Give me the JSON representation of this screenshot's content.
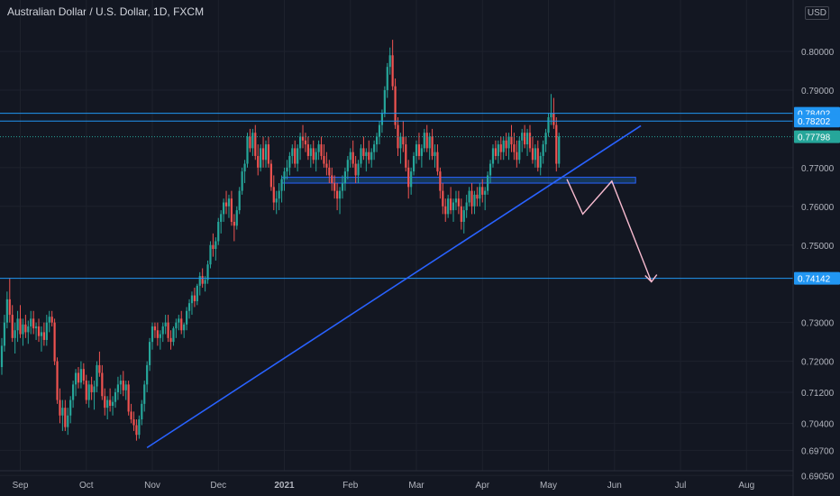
{
  "header": {
    "title": "Australian Dollar / U.S. Dollar, 1D, FXCM",
    "currency": "USD"
  },
  "chart_data": {
    "type": "candlestick",
    "title": "Australian Dollar / U.S. Dollar, 1D, FXCM",
    "price_ticks": [
      "0.80000",
      "0.79000",
      "0.77000",
      "0.76000",
      "0.75000",
      "0.73000",
      "0.72000",
      "0.71200",
      "0.70400",
      "0.69700",
      "0.69050"
    ],
    "time_ticks": [
      {
        "label": "Sep",
        "t": 7,
        "bold": false
      },
      {
        "label": "Oct",
        "t": 32,
        "bold": false
      },
      {
        "label": "Nov",
        "t": 57,
        "bold": false
      },
      {
        "label": "Dec",
        "t": 82,
        "bold": false
      },
      {
        "label": "2021",
        "t": 107,
        "bold": true
      },
      {
        "label": "Feb",
        "t": 132,
        "bold": false
      },
      {
        "label": "Mar",
        "t": 157,
        "bold": false
      },
      {
        "label": "Apr",
        "t": 182,
        "bold": false
      },
      {
        "label": "May",
        "t": 207,
        "bold": false
      },
      {
        "label": "Jun",
        "t": 232,
        "bold": false
      },
      {
        "label": "Jul",
        "t": 257,
        "bold": false
      },
      {
        "label": "Aug",
        "t": 282,
        "bold": false
      }
    ],
    "x_range": [
      0,
      320
    ],
    "price_labels": [
      {
        "value": "0.78402",
        "price": 0.78402,
        "color": "#2196f3",
        "text_color": "#ffffff"
      },
      {
        "value": "0.78202",
        "price": 0.78202,
        "color": "#2196f3",
        "text_color": "#ffffff"
      },
      {
        "value": "0.77798",
        "price": 0.77798,
        "color": "#26a69a",
        "text_color": "#ffffff"
      },
      {
        "value": "0.74142",
        "price": 0.74142,
        "color": "#2196f3",
        "text_color": "#ffffff"
      }
    ],
    "horizontal_lines": [
      0.78402,
      0.78202,
      0.74142
    ],
    "last_price": 0.77798,
    "support_zone": {
      "t1": 106,
      "t2": 240,
      "p_top": 0.7675,
      "p_bottom": 0.766
    },
    "trendline": {
      "t1": 55,
      "p1": 0.6977,
      "t2": 242,
      "p2": 0.7808
    },
    "projection": [
      [
        214,
        0.767
      ],
      [
        220,
        0.758
      ],
      [
        231,
        0.7665
      ],
      [
        246,
        0.7405
      ]
    ],
    "candles_ohlc": [
      [
        0.7185,
        0.726,
        0.7165,
        0.724
      ],
      [
        0.724,
        0.732,
        0.7225,
        0.73
      ],
      [
        0.73,
        0.738,
        0.7285,
        0.736
      ],
      [
        0.736,
        0.7415,
        0.73,
        0.732
      ],
      [
        0.732,
        0.7345,
        0.725,
        0.726
      ],
      [
        0.726,
        0.73,
        0.722,
        0.728
      ],
      [
        0.728,
        0.733,
        0.725,
        0.731
      ],
      [
        0.731,
        0.7345,
        0.726,
        0.727
      ],
      [
        0.727,
        0.731,
        0.724,
        0.7295
      ],
      [
        0.7295,
        0.732,
        0.726,
        0.7275
      ],
      [
        0.7275,
        0.7305,
        0.7245,
        0.729
      ],
      [
        0.729,
        0.733,
        0.727,
        0.731
      ],
      [
        0.731,
        0.733,
        0.727,
        0.7285
      ],
      [
        0.7285,
        0.73,
        0.7255,
        0.729
      ],
      [
        0.729,
        0.731,
        0.725,
        0.7265
      ],
      [
        0.7265,
        0.729,
        0.7225,
        0.7275
      ],
      [
        0.7275,
        0.73,
        0.724,
        0.7255
      ],
      [
        0.7255,
        0.732,
        0.724,
        0.73
      ],
      [
        0.73,
        0.733,
        0.7275,
        0.7315
      ],
      [
        0.7315,
        0.733,
        0.729,
        0.73
      ],
      [
        0.73,
        0.731,
        0.719,
        0.72
      ],
      [
        0.72,
        0.721,
        0.709,
        0.71
      ],
      [
        0.71,
        0.713,
        0.704,
        0.706
      ],
      [
        0.706,
        0.71,
        0.702,
        0.708
      ],
      [
        0.708,
        0.71,
        0.702,
        0.703
      ],
      [
        0.703,
        0.708,
        0.701,
        0.706
      ],
      [
        0.706,
        0.711,
        0.704,
        0.71
      ],
      [
        0.71,
        0.715,
        0.708,
        0.714
      ],
      [
        0.714,
        0.718,
        0.711,
        0.717
      ],
      [
        0.717,
        0.7185,
        0.713,
        0.7145
      ],
      [
        0.7145,
        0.72,
        0.713,
        0.718
      ],
      [
        0.718,
        0.7195,
        0.714,
        0.715
      ],
      [
        0.715,
        0.7165,
        0.709,
        0.71
      ],
      [
        0.71,
        0.715,
        0.708,
        0.714
      ],
      [
        0.714,
        0.716,
        0.71,
        0.712
      ],
      [
        0.712,
        0.715,
        0.7075,
        0.7135
      ],
      [
        0.7135,
        0.72,
        0.712,
        0.719
      ],
      [
        0.719,
        0.7225,
        0.716,
        0.717
      ],
      [
        0.717,
        0.719,
        0.71,
        0.711
      ],
      [
        0.711,
        0.713,
        0.706,
        0.708
      ],
      [
        0.708,
        0.711,
        0.705,
        0.71
      ],
      [
        0.71,
        0.713,
        0.707,
        0.7085
      ],
      [
        0.7085,
        0.711,
        0.706,
        0.7095
      ],
      [
        0.7095,
        0.713,
        0.708,
        0.712
      ],
      [
        0.712,
        0.716,
        0.71,
        0.714
      ],
      [
        0.714,
        0.7165,
        0.7115,
        0.715
      ],
      [
        0.715,
        0.7175,
        0.711,
        0.7125
      ],
      [
        0.7125,
        0.715,
        0.71,
        0.714
      ],
      [
        0.714,
        0.715,
        0.706,
        0.707
      ],
      [
        0.707,
        0.709,
        0.704,
        0.705
      ],
      [
        0.705,
        0.707,
        0.702,
        0.7035
      ],
      [
        0.7035,
        0.705,
        0.6995,
        0.701
      ],
      [
        0.701,
        0.706,
        0.7,
        0.705
      ],
      [
        0.705,
        0.71,
        0.7035,
        0.709
      ],
      [
        0.709,
        0.715,
        0.707,
        0.714
      ],
      [
        0.714,
        0.72,
        0.712,
        0.719
      ],
      [
        0.719,
        0.726,
        0.7175,
        0.725
      ],
      [
        0.725,
        0.73,
        0.723,
        0.729
      ],
      [
        0.729,
        0.73,
        0.726,
        0.728
      ],
      [
        0.728,
        0.73,
        0.724,
        0.726
      ],
      [
        0.726,
        0.728,
        0.723,
        0.727
      ],
      [
        0.727,
        0.73,
        0.725,
        0.729
      ],
      [
        0.729,
        0.732,
        0.727,
        0.73
      ],
      [
        0.73,
        0.732,
        0.725,
        0.726
      ],
      [
        0.726,
        0.728,
        0.723,
        0.725
      ],
      [
        0.725,
        0.729,
        0.724,
        0.7285
      ],
      [
        0.7285,
        0.731,
        0.726,
        0.73
      ],
      [
        0.73,
        0.732,
        0.728,
        0.731
      ],
      [
        0.731,
        0.733,
        0.727,
        0.728
      ],
      [
        0.728,
        0.73,
        0.726,
        0.7295
      ],
      [
        0.7295,
        0.734,
        0.728,
        0.733
      ],
      [
        0.733,
        0.736,
        0.731,
        0.735
      ],
      [
        0.735,
        0.738,
        0.732,
        0.737
      ],
      [
        0.737,
        0.739,
        0.734,
        0.7355
      ],
      [
        0.7355,
        0.74,
        0.7345,
        0.7395
      ],
      [
        0.7395,
        0.743,
        0.737,
        0.742
      ],
      [
        0.742,
        0.744,
        0.739,
        0.74
      ],
      [
        0.74,
        0.742,
        0.738,
        0.741
      ],
      [
        0.741,
        0.746,
        0.74,
        0.745
      ],
      [
        0.745,
        0.751,
        0.744,
        0.75
      ],
      [
        0.75,
        0.753,
        0.747,
        0.749
      ],
      [
        0.749,
        0.752,
        0.746,
        0.751
      ],
      [
        0.751,
        0.757,
        0.75,
        0.756
      ],
      [
        0.756,
        0.759,
        0.753,
        0.758
      ],
      [
        0.758,
        0.762,
        0.756,
        0.761
      ],
      [
        0.761,
        0.764,
        0.758,
        0.76
      ],
      [
        0.76,
        0.763,
        0.757,
        0.762
      ],
      [
        0.762,
        0.764,
        0.755,
        0.756
      ],
      [
        0.756,
        0.758,
        0.751,
        0.755
      ],
      [
        0.755,
        0.76,
        0.754,
        0.759
      ],
      [
        0.759,
        0.765,
        0.758,
        0.764
      ],
      [
        0.764,
        0.77,
        0.763,
        0.769
      ],
      [
        0.769,
        0.772,
        0.766,
        0.771
      ],
      [
        0.771,
        0.779,
        0.77,
        0.778
      ],
      [
        0.778,
        0.78,
        0.774,
        0.775
      ],
      [
        0.775,
        0.78,
        0.773,
        0.779
      ],
      [
        0.779,
        0.781,
        0.772,
        0.773
      ],
      [
        0.773,
        0.776,
        0.768,
        0.77
      ],
      [
        0.77,
        0.776,
        0.769,
        0.775
      ],
      [
        0.775,
        0.778,
        0.77,
        0.772
      ],
      [
        0.772,
        0.777,
        0.77,
        0.776
      ],
      [
        0.776,
        0.778,
        0.77,
        0.771
      ],
      [
        0.771,
        0.772,
        0.764,
        0.765
      ],
      [
        0.765,
        0.768,
        0.759,
        0.761
      ],
      [
        0.761,
        0.764,
        0.758,
        0.762
      ],
      [
        0.762,
        0.766,
        0.759,
        0.764
      ],
      [
        0.764,
        0.768,
        0.761,
        0.767
      ],
      [
        0.767,
        0.77,
        0.764,
        0.769
      ],
      [
        0.769,
        0.772,
        0.767,
        0.77
      ],
      [
        0.77,
        0.774,
        0.768,
        0.773
      ],
      [
        0.773,
        0.776,
        0.771,
        0.775
      ],
      [
        0.775,
        0.777,
        0.77,
        0.771
      ],
      [
        0.771,
        0.776,
        0.769,
        0.775
      ],
      [
        0.775,
        0.779,
        0.772,
        0.778
      ],
      [
        0.778,
        0.781,
        0.775,
        0.777
      ],
      [
        0.777,
        0.779,
        0.774,
        0.776
      ],
      [
        0.776,
        0.778,
        0.772,
        0.773
      ],
      [
        0.773,
        0.776,
        0.77,
        0.775
      ],
      [
        0.775,
        0.777,
        0.771,
        0.772
      ],
      [
        0.772,
        0.775,
        0.769,
        0.774
      ],
      [
        0.774,
        0.777,
        0.772,
        0.776
      ],
      [
        0.776,
        0.778,
        0.772,
        0.773
      ],
      [
        0.773,
        0.776,
        0.77,
        0.771
      ],
      [
        0.771,
        0.774,
        0.768,
        0.77
      ],
      [
        0.77,
        0.772,
        0.766,
        0.768
      ],
      [
        0.768,
        0.77,
        0.764,
        0.766
      ],
      [
        0.766,
        0.768,
        0.762,
        0.764
      ],
      [
        0.764,
        0.766,
        0.759,
        0.762
      ],
      [
        0.762,
        0.765,
        0.758,
        0.764
      ],
      [
        0.764,
        0.768,
        0.762,
        0.766
      ],
      [
        0.766,
        0.77,
        0.764,
        0.769
      ],
      [
        0.769,
        0.773,
        0.767,
        0.772
      ],
      [
        0.772,
        0.775,
        0.77,
        0.774
      ],
      [
        0.774,
        0.777,
        0.77,
        0.771
      ],
      [
        0.771,
        0.773,
        0.766,
        0.768
      ],
      [
        0.768,
        0.772,
        0.766,
        0.771
      ],
      [
        0.771,
        0.776,
        0.77,
        0.775
      ],
      [
        0.775,
        0.778,
        0.772,
        0.773
      ],
      [
        0.773,
        0.775,
        0.769,
        0.774
      ],
      [
        0.774,
        0.777,
        0.771,
        0.772
      ],
      [
        0.772,
        0.775,
        0.77,
        0.774
      ],
      [
        0.774,
        0.777,
        0.772,
        0.776
      ],
      [
        0.776,
        0.779,
        0.774,
        0.778
      ],
      [
        0.778,
        0.782,
        0.776,
        0.781
      ],
      [
        0.781,
        0.785,
        0.779,
        0.784
      ],
      [
        0.784,
        0.791,
        0.783,
        0.79
      ],
      [
        0.79,
        0.797,
        0.788,
        0.796
      ],
      [
        0.796,
        0.801,
        0.794,
        0.799
      ],
      [
        0.799,
        0.803,
        0.79,
        0.791
      ],
      [
        0.791,
        0.793,
        0.78,
        0.781
      ],
      [
        0.781,
        0.783,
        0.773,
        0.775
      ],
      [
        0.775,
        0.779,
        0.771,
        0.778
      ],
      [
        0.778,
        0.782,
        0.774,
        0.776
      ],
      [
        0.776,
        0.778,
        0.769,
        0.77
      ],
      [
        0.77,
        0.772,
        0.762,
        0.765
      ],
      [
        0.765,
        0.77,
        0.763,
        0.769
      ],
      [
        0.769,
        0.774,
        0.768,
        0.773
      ],
      [
        0.773,
        0.777,
        0.771,
        0.776
      ],
      [
        0.776,
        0.779,
        0.772,
        0.773
      ],
      [
        0.773,
        0.776,
        0.77,
        0.775
      ],
      [
        0.775,
        0.78,
        0.774,
        0.779
      ],
      [
        0.779,
        0.781,
        0.774,
        0.775
      ],
      [
        0.775,
        0.779,
        0.772,
        0.778
      ],
      [
        0.778,
        0.78,
        0.772,
        0.773
      ],
      [
        0.773,
        0.776,
        0.77,
        0.774
      ],
      [
        0.774,
        0.776,
        0.768,
        0.769
      ],
      [
        0.769,
        0.77,
        0.762,
        0.764
      ],
      [
        0.764,
        0.766,
        0.758,
        0.76
      ],
      [
        0.76,
        0.762,
        0.756,
        0.758
      ],
      [
        0.758,
        0.763,
        0.757,
        0.762
      ],
      [
        0.762,
        0.765,
        0.758,
        0.759
      ],
      [
        0.759,
        0.762,
        0.756,
        0.761
      ],
      [
        0.761,
        0.764,
        0.759,
        0.762
      ],
      [
        0.762,
        0.764,
        0.758,
        0.76
      ],
      [
        0.76,
        0.762,
        0.754,
        0.756
      ],
      [
        0.756,
        0.76,
        0.753,
        0.759
      ],
      [
        0.759,
        0.763,
        0.757,
        0.761
      ],
      [
        0.761,
        0.765,
        0.76,
        0.764
      ],
      [
        0.764,
        0.766,
        0.758,
        0.76
      ],
      [
        0.76,
        0.764,
        0.758,
        0.763
      ],
      [
        0.763,
        0.765,
        0.76,
        0.762
      ],
      [
        0.762,
        0.766,
        0.76,
        0.765
      ],
      [
        0.765,
        0.767,
        0.761,
        0.763
      ],
      [
        0.763,
        0.765,
        0.759,
        0.764
      ],
      [
        0.764,
        0.769,
        0.763,
        0.768
      ],
      [
        0.768,
        0.772,
        0.766,
        0.771
      ],
      [
        0.771,
        0.776,
        0.77,
        0.775
      ],
      [
        0.775,
        0.777,
        0.772,
        0.773
      ],
      [
        0.773,
        0.777,
        0.771,
        0.776
      ],
      [
        0.776,
        0.778,
        0.772,
        0.774
      ],
      [
        0.774,
        0.778,
        0.772,
        0.777
      ],
      [
        0.777,
        0.779,
        0.773,
        0.775
      ],
      [
        0.775,
        0.779,
        0.772,
        0.778
      ],
      [
        0.778,
        0.781,
        0.774,
        0.776
      ],
      [
        0.776,
        0.779,
        0.772,
        0.774
      ],
      [
        0.774,
        0.777,
        0.77,
        0.772
      ],
      [
        0.772,
        0.778,
        0.771,
        0.777
      ],
      [
        0.777,
        0.78,
        0.774,
        0.779
      ],
      [
        0.779,
        0.781,
        0.775,
        0.776
      ],
      [
        0.776,
        0.78,
        0.773,
        0.779
      ],
      [
        0.779,
        0.781,
        0.774,
        0.775
      ],
      [
        0.775,
        0.778,
        0.771,
        0.772
      ],
      [
        0.772,
        0.776,
        0.77,
        0.775
      ],
      [
        0.775,
        0.777,
        0.769,
        0.77
      ],
      [
        0.77,
        0.774,
        0.768,
        0.773
      ],
      [
        0.773,
        0.777,
        0.771,
        0.776
      ],
      [
        0.776,
        0.78,
        0.774,
        0.779
      ],
      [
        0.779,
        0.784,
        0.778,
        0.783
      ],
      [
        0.783,
        0.789,
        0.781,
        0.784
      ],
      [
        0.784,
        0.788,
        0.78,
        0.781
      ],
      [
        0.781,
        0.783,
        0.769,
        0.771
      ],
      [
        0.771,
        0.779,
        0.77,
        0.778
      ]
    ]
  }
}
